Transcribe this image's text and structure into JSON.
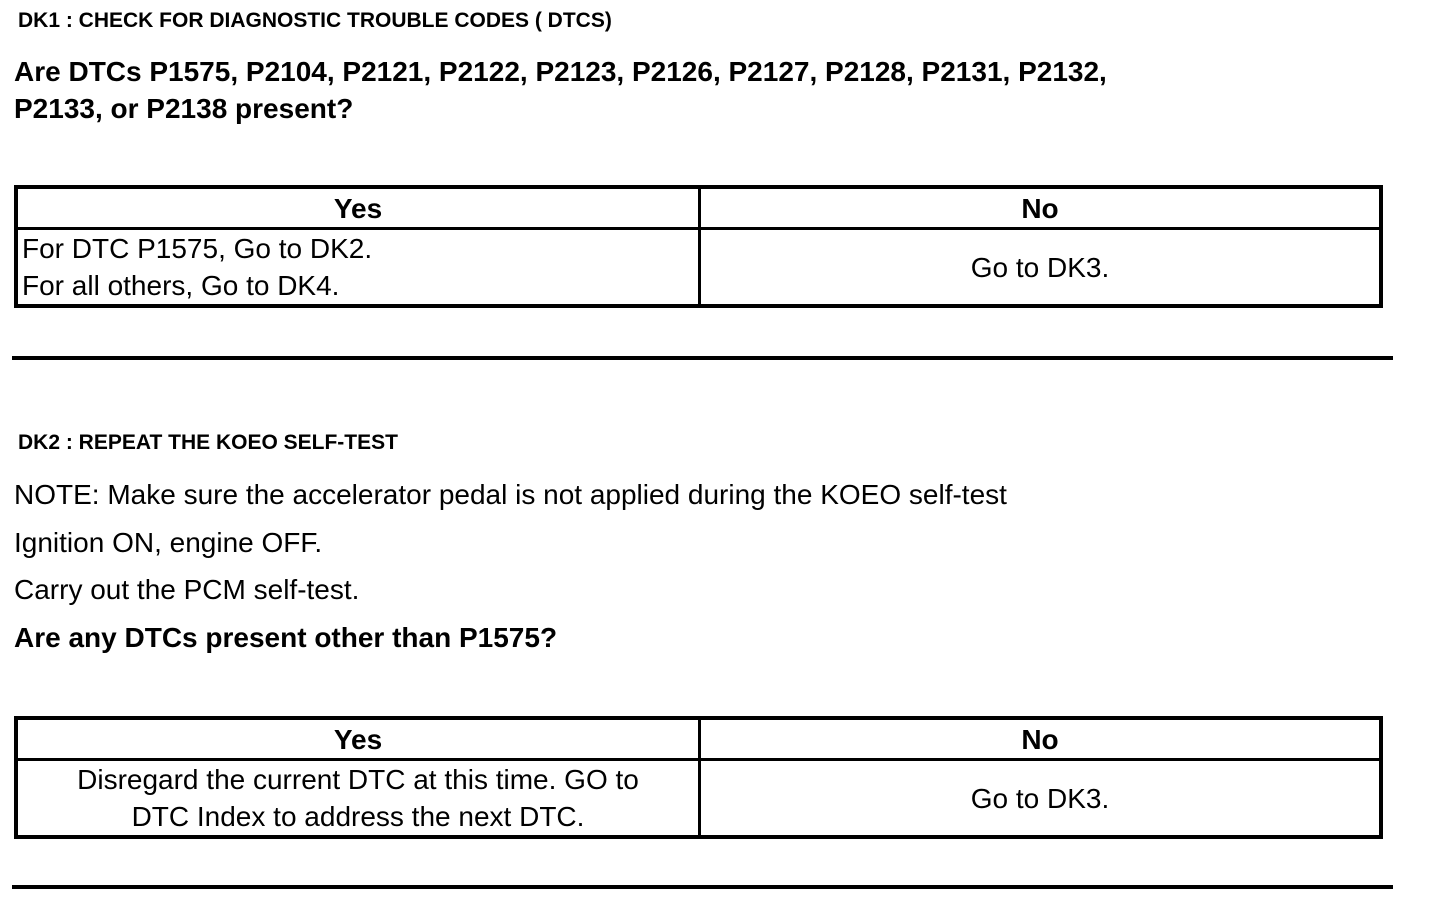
{
  "dk1": {
    "heading": "DK1 : CHECK FOR DIAGNOSTIC TROUBLE CODES ( DTCS)",
    "question_line1": "Are DTCs P1575, P2104, P2121, P2122, P2123, P2126, P2127, P2128, P2131, P2132,",
    "question_line2": "P2133, or P2138 present?",
    "table": {
      "yes_header": "Yes",
      "no_header": "No",
      "yes_line1": "For DTC P1575, Go to DK2.",
      "yes_line2": "For all others, Go to DK4.",
      "no_text": "Go to DK3."
    }
  },
  "dk2": {
    "heading": "DK2 : REPEAT THE KOEO SELF-TEST",
    "note": "NOTE: Make sure the accelerator pedal is not applied during the KOEO self-test",
    "step1": "Ignition ON, engine OFF.",
    "step2": "Carry out the PCM self-test.",
    "question": "Are any DTCs present other than P1575?",
    "table": {
      "yes_header": "Yes",
      "no_header": "No",
      "yes_line1": "Disregard the current DTC at this time. GO to",
      "yes_line2": "DTC Index to address the next DTC.",
      "no_text": "Go to DK3."
    }
  }
}
